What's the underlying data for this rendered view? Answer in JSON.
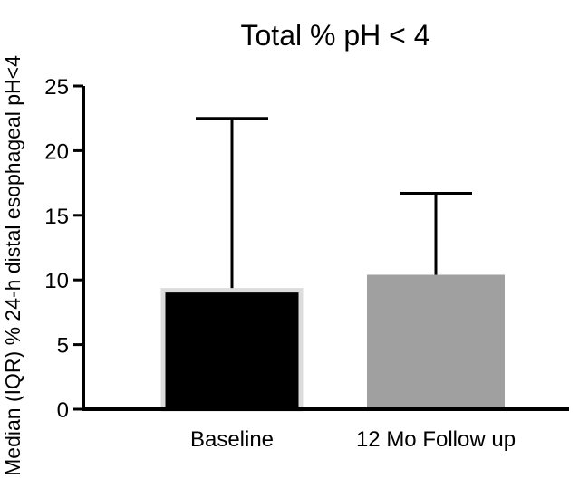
{
  "chart_data": {
    "type": "bar",
    "title": "Total % pH < 4",
    "ylabel": "Median (IQR) % 24-h distal esophageal pH<4",
    "xlabel": "",
    "categories": [
      "Baseline",
      "12 Mo Follow up"
    ],
    "values": [
      9.2,
      10.4
    ],
    "error_upper": [
      22.5,
      16.7
    ],
    "ylim": [
      0,
      25
    ],
    "yticks": [
      "0",
      "5",
      "10",
      "15",
      "20",
      "25"
    ],
    "colors": [
      "#000000",
      "#a0a0a0"
    ],
    "grid": false,
    "legend": "none"
  }
}
